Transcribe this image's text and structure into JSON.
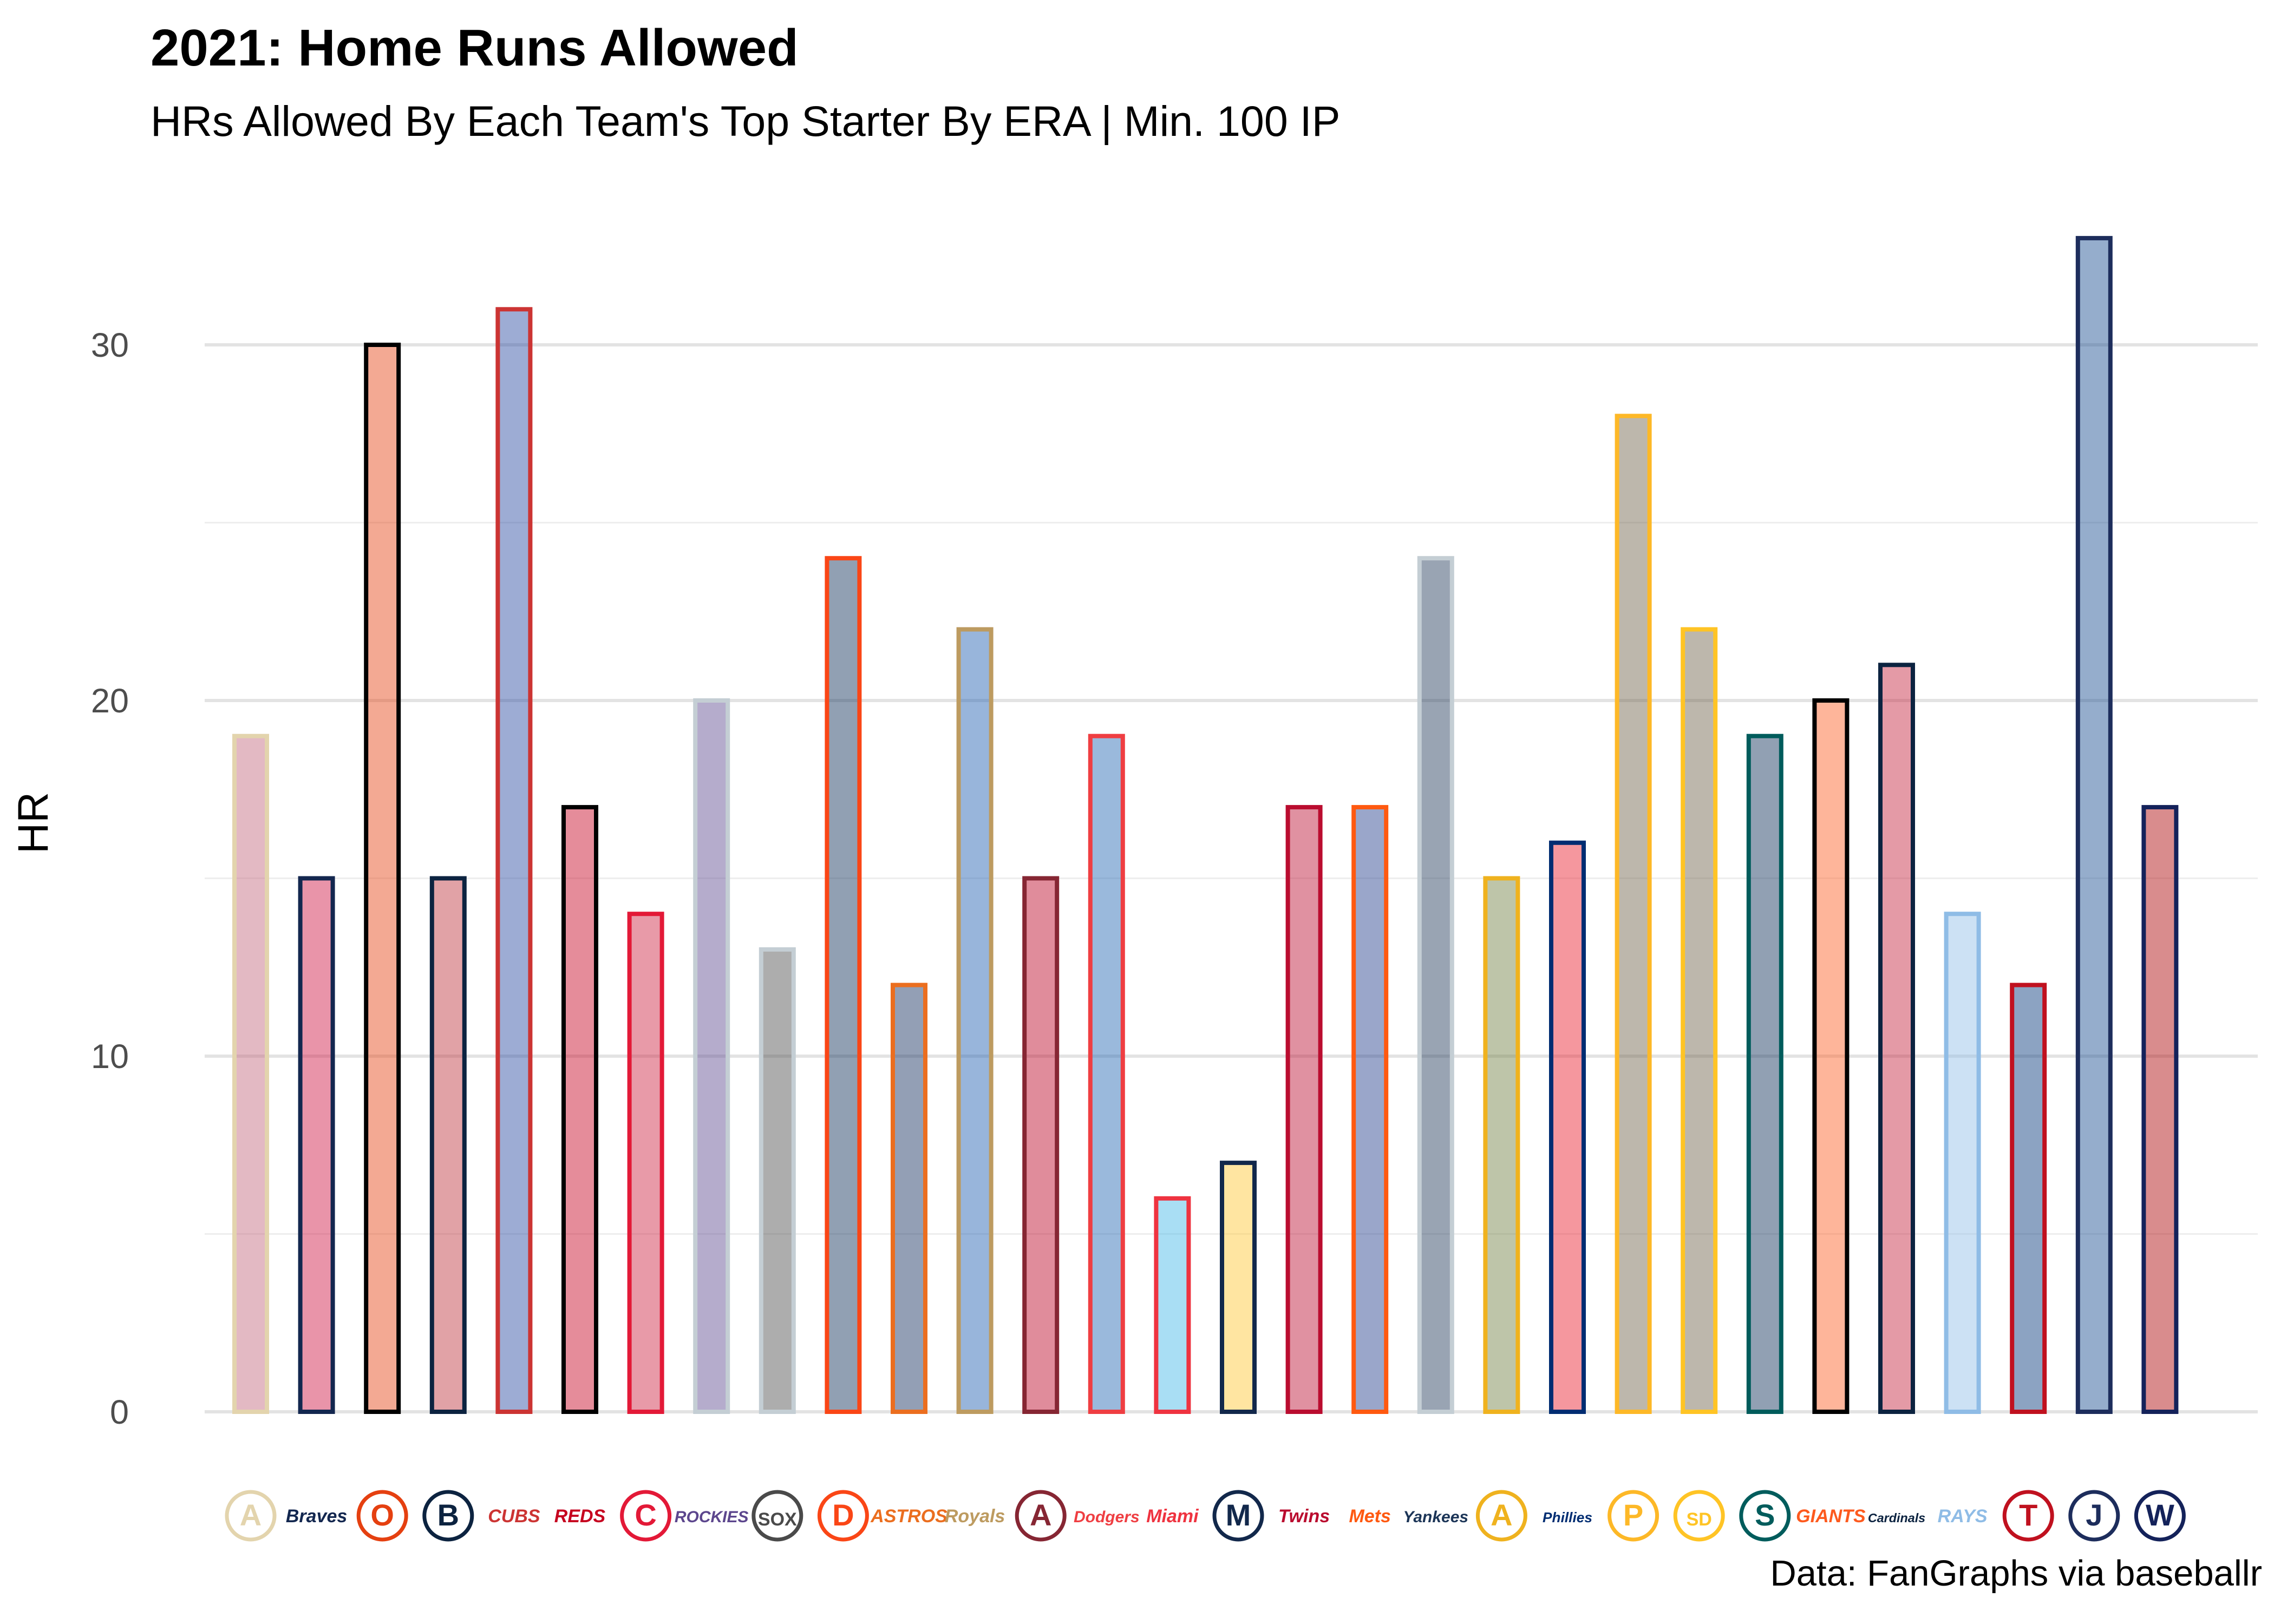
{
  "chart_data": {
    "type": "bar",
    "title": "2021: Home Runs Allowed",
    "subtitle": "HRs Allowed By Each Team's Top Starter By ERA | Min. 100 IP",
    "caption": "Data: FanGraphs via baseballr",
    "xlabel": "",
    "ylabel": "HR",
    "ylim": [
      0,
      33
    ],
    "yticks": [
      0,
      10,
      20,
      30
    ],
    "grid": true,
    "legend": "none",
    "categories": [
      "ARI",
      "ATL",
      "BAL",
      "BOS",
      "CHC",
      "CIN",
      "CLE",
      "COL",
      "CHW",
      "DET",
      "HOU",
      "KC",
      "LAA",
      "LAD",
      "MIA",
      "MIL",
      "MIN",
      "NYM",
      "NYY",
      "OAK",
      "PHI",
      "PIT",
      "SD",
      "SEA",
      "SF",
      "STL",
      "TB",
      "TEX",
      "TOR",
      "WSH"
    ],
    "values": [
      19,
      15,
      30,
      15,
      31,
      17,
      14,
      20,
      13,
      24,
      12,
      22,
      15,
      19,
      6,
      7,
      17,
      17,
      24,
      15,
      16,
      28,
      22,
      19,
      20,
      21,
      14,
      12,
      33,
      17
    ],
    "colors": {
      "fill": [
        "#C0647A",
        "#CE1141",
        "#E54010",
        "#BD3039",
        "#2547A0",
        "#C6011F",
        "#CC1E3E",
        "#5C468D",
        "#4A4A4A",
        "#0C2C56",
        "#102A5C",
        "#1A5BAF",
        "#BA0021",
        "#1E64B2",
        "#41B6E6",
        "#FFC52F",
        "#BA0C2F",
        "#1E3A8A",
        "#1C3557",
        "#6E7F40",
        "#E81828",
        "#6C6048",
        "#6C6048",
        "#0C2C56",
        "#FD5A1E",
        "#C41E3A",
        "#8FBCE6",
        "#003278",
        "#134A8E",
        "#AB0003"
      ],
      "outline": [
        "#E3D4AD",
        "#13274F",
        "#000000",
        "#0C2340",
        "#CC3433",
        "#000000",
        "#E31937",
        "#C4CED4",
        "#C4CED4",
        "#FA4616",
        "#EB6E1F",
        "#BD9B60",
        "#862633",
        "#EF3E42",
        "#EF3340",
        "#12284B",
        "#BA0C2F",
        "#FF5910",
        "#C4CED4",
        "#EFB21E",
        "#002D72",
        "#FDB827",
        "#FFC425",
        "#005C5C",
        "#000000",
        "#0C2340",
        "#8FBCE6",
        "#C0111F",
        "#1D2D5C",
        "#14225A"
      ]
    },
    "logos": [
      "A",
      "Braves",
      "O",
      "B",
      "CUBS",
      "REDS",
      "C",
      "ROCKIES",
      "SOX",
      "D",
      "ASTROS",
      "Royals",
      "A",
      "Dodgers",
      "Miami",
      "M",
      "Twins",
      "Mets",
      "Yankees",
      "A",
      "Phillies",
      "P",
      "SD",
      "S",
      "GIANTS",
      "Cardinals",
      "RAYS",
      "T",
      "J",
      "W"
    ]
  }
}
